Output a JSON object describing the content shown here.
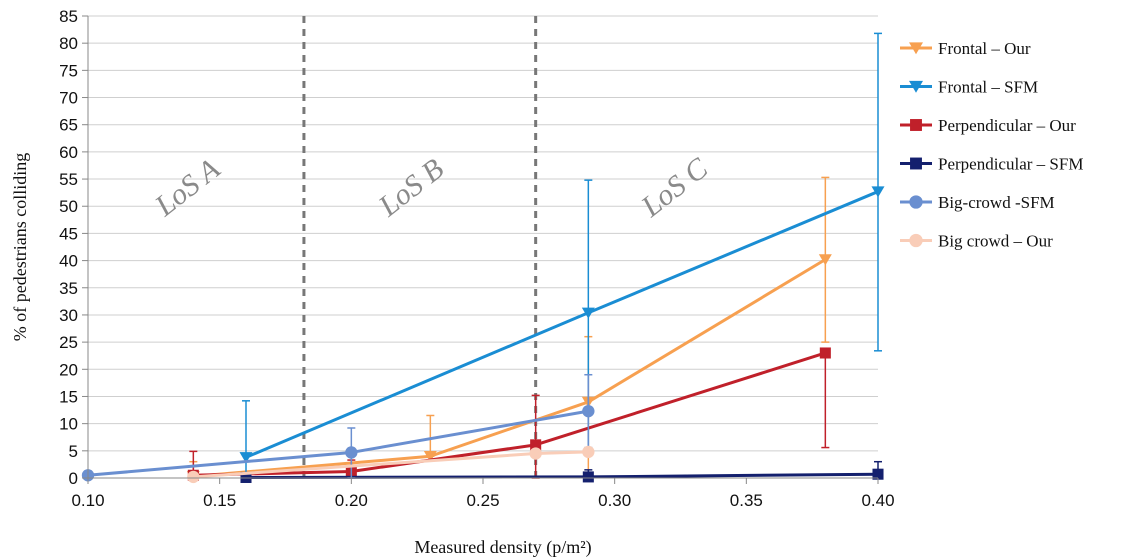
{
  "chart_data": {
    "type": "line",
    "xlabel": "Measured density (p/m²)",
    "ylabel": "% of pedestrians colliding",
    "xlim": [
      0.1,
      0.4
    ],
    "ylim": [
      0,
      85
    ],
    "xticks": [
      "0.10",
      "0.15",
      "0.20",
      "0.25",
      "0.30",
      "0.35",
      "0.40"
    ],
    "yticks": [
      "0",
      "5",
      "10",
      "15",
      "20",
      "25",
      "30",
      "35",
      "40",
      "45",
      "50",
      "55",
      "60",
      "65",
      "70",
      "75",
      "80",
      "85"
    ],
    "grid": "horizontal",
    "legend_position": "right",
    "region_boundaries": [
      0.182,
      0.27
    ],
    "regions": [
      {
        "label": "LoS A",
        "x": 0.14
      },
      {
        "label": "LoS B",
        "x": 0.225
      },
      {
        "label": "LoS C",
        "x": 0.325
      }
    ],
    "series": [
      {
        "name": "Frontal – Our",
        "color": "#f7a050",
        "marker": "triangle-down",
        "x": [
          0.14,
          0.23,
          0.29,
          0.38
        ],
        "y": [
          0.3,
          4,
          14,
          40.2
        ],
        "err_low": [
          0,
          4,
          1,
          25
        ],
        "err_high": [
          3,
          11.5,
          26,
          55.3
        ]
      },
      {
        "name": "Frontal – SFM",
        "color": "#1a8dd3",
        "marker": "triangle-down",
        "x": [
          0.16,
          0.29,
          0.4
        ],
        "y": [
          3.8,
          30.4,
          52.7
        ],
        "err_low": [
          0,
          5.5,
          23.4
        ],
        "err_high": [
          14.2,
          54.8,
          81.8
        ]
      },
      {
        "name": "Perpendicular  – Our",
        "color": "#c0202a",
        "marker": "square",
        "x": [
          0.14,
          0.2,
          0.27,
          0.38
        ],
        "y": [
          0.5,
          1.2,
          6.1,
          23
        ],
        "err_low": [
          0,
          0,
          0,
          5.6
        ],
        "err_high": [
          4.9,
          3.3,
          15.2,
          23
        ]
      },
      {
        "name": "Perpendicular  – SFM",
        "color": "#14206e",
        "marker": "square",
        "x": [
          0.16,
          0.29,
          0.4
        ],
        "y": [
          0.1,
          0.2,
          0.7
        ],
        "err_low": [
          0,
          0,
          0
        ],
        "err_high": [
          0.1,
          1.5,
          3
        ]
      },
      {
        "name": "Big-crowd -SFM",
        "color": "#6a8fd0",
        "marker": "circle",
        "x": [
          0.1,
          0.2,
          0.29
        ],
        "y": [
          0.5,
          4.7,
          12.3
        ],
        "err_low": [
          0,
          0,
          5.6
        ],
        "err_high": [
          0.5,
          9.2,
          19
        ]
      },
      {
        "name": "Big crowd – Our",
        "color": "#f9cdb8",
        "marker": "circle",
        "x": [
          0.14,
          0.27,
          0.29
        ],
        "y": [
          0.2,
          4.5,
          4.8
        ],
        "err_low": [
          0,
          4.5,
          4.8
        ],
        "err_high": [
          0.2,
          4.5,
          4.8
        ]
      }
    ]
  }
}
